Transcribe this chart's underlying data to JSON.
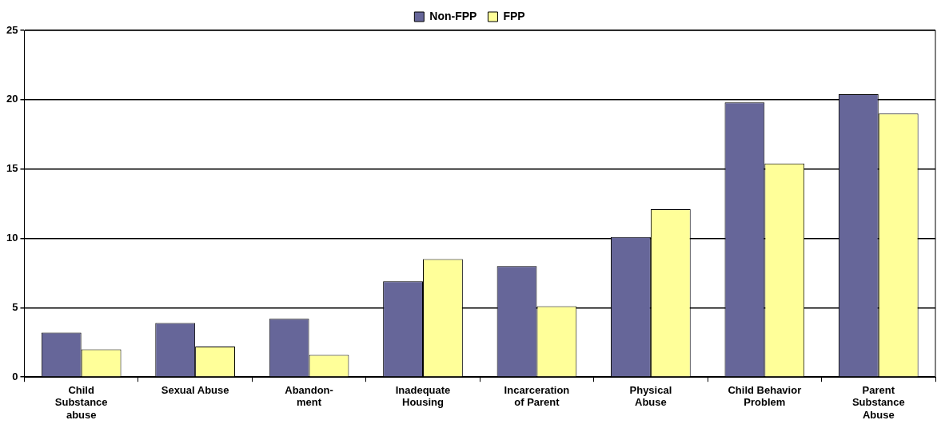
{
  "chart_data": {
    "type": "bar",
    "categories": [
      "Child Substance abuse",
      "Sexual Abuse",
      "Abandon- ment",
      "Inadequate Housing",
      "Incarceration of Parent",
      "Physical Abuse",
      "Child Behavior Problem",
      "Parent Substance Abuse"
    ],
    "series": [
      {
        "name": "Non-FPP",
        "color": "#666699",
        "values": [
          3.2,
          3.9,
          4.2,
          6.9,
          8.0,
          10.1,
          19.8,
          20.4
        ]
      },
      {
        "name": "FPP",
        "color": "#ffff99",
        "values": [
          2.0,
          2.2,
          1.6,
          8.5,
          5.1,
          12.1,
          15.4,
          19.0
        ]
      }
    ],
    "ylim": [
      0,
      25
    ],
    "yticks": [
      0,
      5,
      10,
      15,
      20,
      25
    ],
    "grid": "y",
    "legend": "top"
  }
}
